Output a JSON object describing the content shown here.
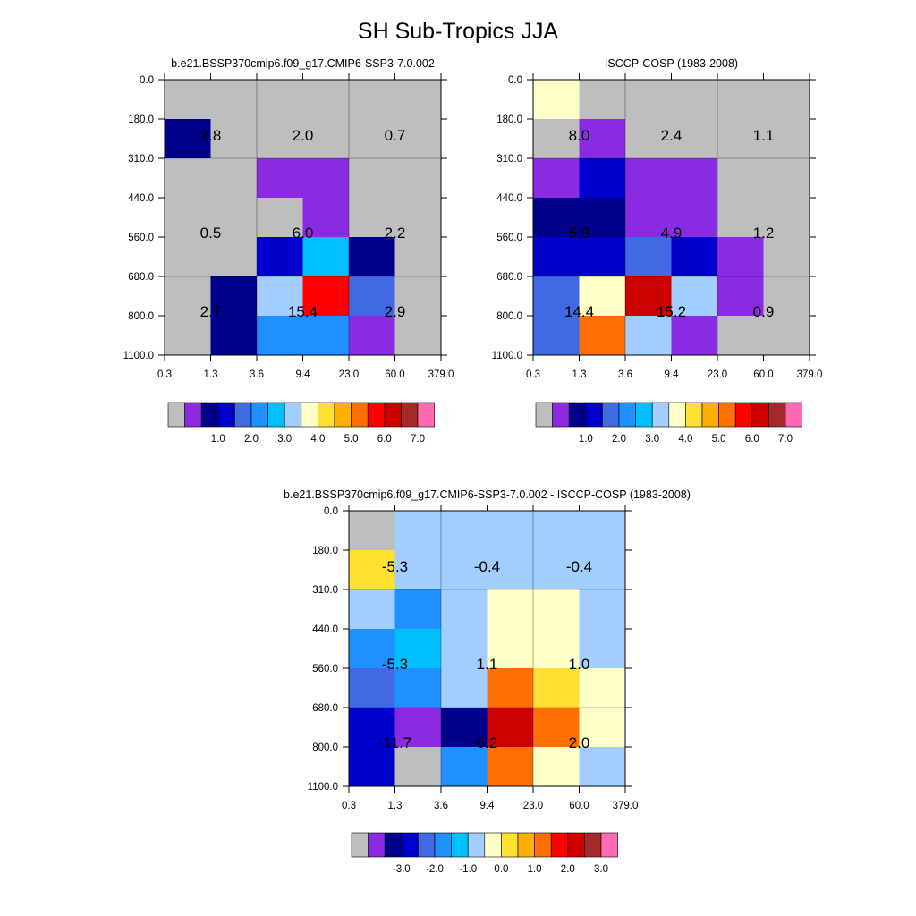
{
  "figure_title": "SH Sub-Tropics JJA",
  "palettes": {
    "abs": [
      "#bebebe",
      "#8a2be2",
      "#00008b",
      "#0000cd",
      "#4169e1",
      "#1e90ff",
      "#00bfff",
      "#a2cdff",
      "#ffffc8",
      "#ffe032",
      "#ffad00",
      "#ff6e00",
      "#ff0000",
      "#cd0000",
      "#a52a2a",
      "#ff69b4"
    ],
    "diff": [
      "#bebebe",
      "#8a2be2",
      "#00008b",
      "#0000cd",
      "#4169e1",
      "#1e90ff",
      "#00bfff",
      "#a2cdff",
      "#ffffc8",
      "#ffe032",
      "#ffad00",
      "#ff6e00",
      "#ff0000",
      "#cd0000",
      "#a52a2a",
      "#ff69b4"
    ]
  },
  "chart_data": [
    {
      "type": "heatmap",
      "title": "b.e21.BSSP370cmip6.f09_g17.CMIP6-SSP3-7.0.002",
      "x_ticks": [
        "0.3",
        "1.3",
        "3.6",
        "9.4",
        "23.0",
        "60.0",
        "379.0"
      ],
      "y_ticks": [
        "0.0",
        "180.0",
        "310.0",
        "440.0",
        "560.0",
        "680.0",
        "800.0",
        "1100.0"
      ],
      "colorbar_labels": [
        "1.0",
        "2.0",
        "3.0",
        "4.0",
        "5.0",
        "6.0",
        "7.0"
      ],
      "palette": "abs",
      "cells": [
        [
          0,
          0,
          0,
          0,
          0,
          0
        ],
        [
          2,
          0,
          0,
          0,
          0,
          0
        ],
        [
          0,
          0,
          1,
          1,
          0,
          0
        ],
        [
          0,
          0,
          0,
          1,
          0,
          0
        ],
        [
          0,
          0,
          3,
          6,
          2,
          0
        ],
        [
          0,
          2,
          7,
          12,
          4,
          0
        ],
        [
          0,
          2,
          5,
          5,
          1,
          0
        ]
      ],
      "box_labels": [
        {
          "label": "2.8",
          "col": 0,
          "row": 0
        },
        {
          "label": "2.0",
          "col": 1,
          "row": 0
        },
        {
          "label": "0.7",
          "col": 2,
          "row": 0
        },
        {
          "label": "0.5",
          "col": 0,
          "row": 1
        },
        {
          "label": "6.0",
          "col": 1,
          "row": 1
        },
        {
          "label": "2.2",
          "col": 2,
          "row": 1
        },
        {
          "label": "2.7",
          "col": 0,
          "row": 2
        },
        {
          "label": "15.4",
          "col": 1,
          "row": 2
        },
        {
          "label": "2.9",
          "col": 2,
          "row": 2
        }
      ]
    },
    {
      "type": "heatmap",
      "title": "ISCCP-COSP (1983-2008)",
      "x_ticks": [
        "0.3",
        "1.3",
        "3.6",
        "9.4",
        "23.0",
        "60.0",
        "379.0"
      ],
      "y_ticks": [
        "0.0",
        "180.0",
        "310.0",
        "440.0",
        "560.0",
        "680.0",
        "800.0",
        "1100.0"
      ],
      "colorbar_labels": [
        "1.0",
        "2.0",
        "3.0",
        "4.0",
        "5.0",
        "6.0",
        "7.0"
      ],
      "palette": "abs",
      "cells": [
        [
          8,
          0,
          0,
          0,
          0,
          0
        ],
        [
          0,
          1,
          0,
          0,
          0,
          0
        ],
        [
          1,
          3,
          1,
          1,
          0,
          0
        ],
        [
          2,
          2,
          1,
          1,
          0,
          0
        ],
        [
          3,
          3,
          4,
          3,
          1,
          0
        ],
        [
          4,
          8,
          13,
          7,
          1,
          0
        ],
        [
          4,
          11,
          7,
          1,
          0,
          0
        ]
      ],
      "box_labels": [
        {
          "label": "8.0",
          "col": 0,
          "row": 0
        },
        {
          "label": "2.4",
          "col": 1,
          "row": 0
        },
        {
          "label": "1.1",
          "col": 2,
          "row": 0
        },
        {
          "label": "5.9",
          "col": 0,
          "row": 1
        },
        {
          "label": "4.9",
          "col": 1,
          "row": 1
        },
        {
          "label": "1.2",
          "col": 2,
          "row": 1
        },
        {
          "label": "14.4",
          "col": 0,
          "row": 2
        },
        {
          "label": "15.2",
          "col": 1,
          "row": 2
        },
        {
          "label": "0.9",
          "col": 2,
          "row": 2
        }
      ]
    },
    {
      "type": "heatmap",
      "title": "b.e21.BSSP370cmip6.f09_g17.CMIP6-SSP3-7.0.002 - ISCCP-COSP (1983-2008)",
      "x_ticks": [
        "0.3",
        "1.3",
        "3.6",
        "9.4",
        "23.0",
        "60.0",
        "379.0"
      ],
      "y_ticks": [
        "0.0",
        "180.0",
        "310.0",
        "440.0",
        "560.0",
        "680.0",
        "800.0",
        "1100.0"
      ],
      "colorbar_labels": [
        "-3.0",
        "-2.0",
        "-1.0",
        "0.0",
        "1.0",
        "2.0",
        "3.0"
      ],
      "palette": "diff",
      "cells": [
        [
          0,
          7,
          7,
          7,
          7,
          7
        ],
        [
          9,
          7,
          7,
          7,
          7,
          7
        ],
        [
          7,
          5,
          7,
          8,
          8,
          7
        ],
        [
          5,
          6,
          7,
          8,
          8,
          7
        ],
        [
          4,
          5,
          7,
          11,
          9,
          8
        ],
        [
          3,
          1,
          2,
          13,
          11,
          8
        ],
        [
          3,
          0,
          5,
          11,
          8,
          7
        ]
      ],
      "box_labels": [
        {
          "label": "-5.3",
          "col": 0,
          "row": 0
        },
        {
          "label": "-0.4",
          "col": 1,
          "row": 0
        },
        {
          "label": "-0.4",
          "col": 2,
          "row": 0
        },
        {
          "label": "-5.3",
          "col": 0,
          "row": 1
        },
        {
          "label": "1.1",
          "col": 1,
          "row": 1
        },
        {
          "label": "1.0",
          "col": 2,
          "row": 1
        },
        {
          "label": "-11.7",
          "col": 0,
          "row": 2
        },
        {
          "label": "0.2",
          "col": 1,
          "row": 2
        },
        {
          "label": "2.0",
          "col": 2,
          "row": 2
        }
      ]
    }
  ]
}
